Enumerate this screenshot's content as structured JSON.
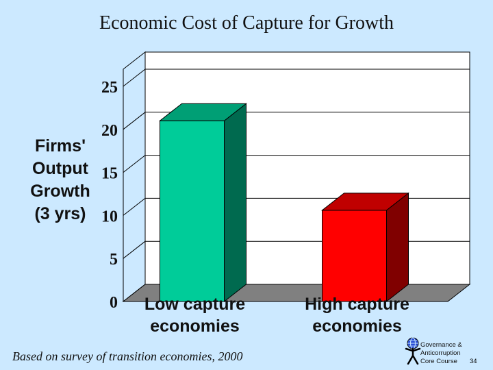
{
  "slide": {
    "title": "Economic Cost of Capture for Growth",
    "footnote": "Based on survey of transition economies, 2000",
    "brand_lines": [
      "Governance &",
      "Anticorruption",
      "Core Course"
    ],
    "page_number": "34"
  },
  "chart_data": {
    "type": "bar",
    "title": "Economic Cost of Capture for Growth",
    "ylabel": [
      "Firms'",
      "Output",
      "Growth",
      "(3 yrs)"
    ],
    "xlabel": "",
    "categories": [
      [
        "Low capture",
        "economies"
      ],
      [
        "High capture",
        "economies"
      ]
    ],
    "values": [
      21,
      10.6
    ],
    "ylim": [
      0,
      25
    ],
    "yticks": [
      0,
      5,
      10,
      15,
      20,
      25
    ],
    "grid": true,
    "colors": {
      "bar_front": [
        "#00cc99",
        "#ff0000"
      ],
      "bar_side": [
        "#006a4f",
        "#800000"
      ],
      "bar_top": [
        "#009f75",
        "#c00000"
      ],
      "floor": "#808080",
      "wall": "#ffffff",
      "side_wall": "#cce9ff"
    }
  }
}
